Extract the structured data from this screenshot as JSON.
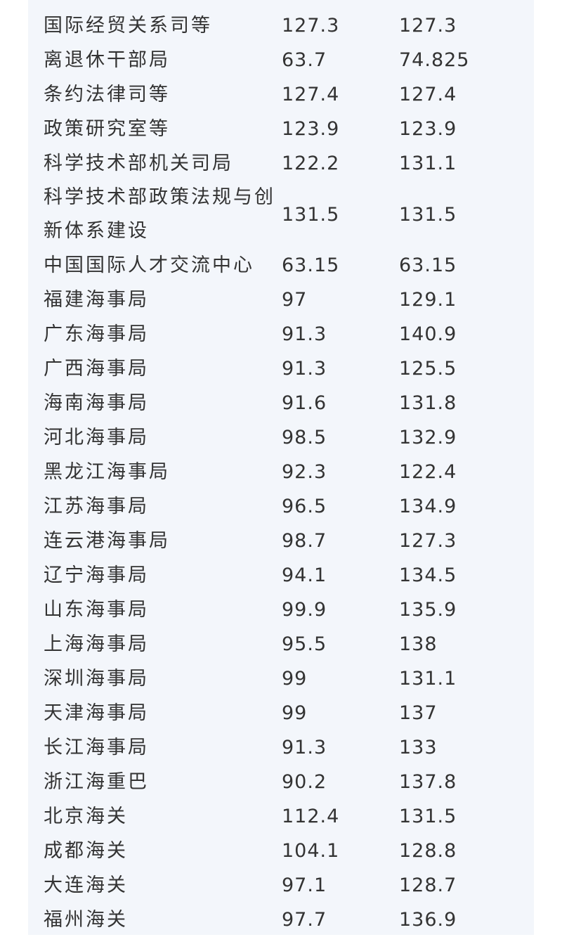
{
  "rows": [
    {
      "name": "国际经贸关系司等",
      "a": "127.3",
      "b": "127.3"
    },
    {
      "name": "离退休干部局",
      "a": "63.7",
      "b": "74.825"
    },
    {
      "name": "条约法律司等",
      "a": "127.4",
      "b": "127.4"
    },
    {
      "name": "政策研究室等",
      "a": "123.9",
      "b": "123.9"
    },
    {
      "name": "科学技术部机关司局",
      "a": "122.2",
      "b": "131.1"
    },
    {
      "name": "科学技术部政策法规与创新体系建设",
      "a": "131.5",
      "b": "131.5"
    },
    {
      "name": "中国国际人才交流中心",
      "a": "63.15",
      "b": "63.15"
    },
    {
      "name": "福建海事局",
      "a": "97",
      "b": "129.1"
    },
    {
      "name": "广东海事局",
      "a": "91.3",
      "b": "140.9"
    },
    {
      "name": "广西海事局",
      "a": "91.3",
      "b": "125.5"
    },
    {
      "name": "海南海事局",
      "a": "91.6",
      "b": "131.8"
    },
    {
      "name": "河北海事局",
      "a": "98.5",
      "b": "132.9"
    },
    {
      "name": "黑龙江海事局",
      "a": "92.3",
      "b": "122.4"
    },
    {
      "name": "江苏海事局",
      "a": "96.5",
      "b": "134.9"
    },
    {
      "name": "连云港海事局",
      "a": "98.7",
      "b": "127.3"
    },
    {
      "name": "辽宁海事局",
      "a": "94.1",
      "b": "134.5"
    },
    {
      "name": "山东海事局",
      "a": "99.9",
      "b": "135.9"
    },
    {
      "name": "上海海事局",
      "a": "95.5",
      "b": "138"
    },
    {
      "name": "深圳海事局",
      "a": "99",
      "b": "131.1"
    },
    {
      "name": "天津海事局",
      "a": "99",
      "b": "137"
    },
    {
      "name": "长江海事局",
      "a": "91.3",
      "b": "133"
    },
    {
      "name": "浙江海重巴",
      "a": "90.2",
      "b": "137.8"
    },
    {
      "name": "北京海关",
      "a": "112.4",
      "b": "131.5"
    },
    {
      "name": "成都海关",
      "a": "104.1",
      "b": "128.8"
    },
    {
      "name": "大连海关",
      "a": "97.1",
      "b": "128.7"
    },
    {
      "name": "福州海关",
      "a": "97.7",
      "b": "136.9"
    }
  ]
}
